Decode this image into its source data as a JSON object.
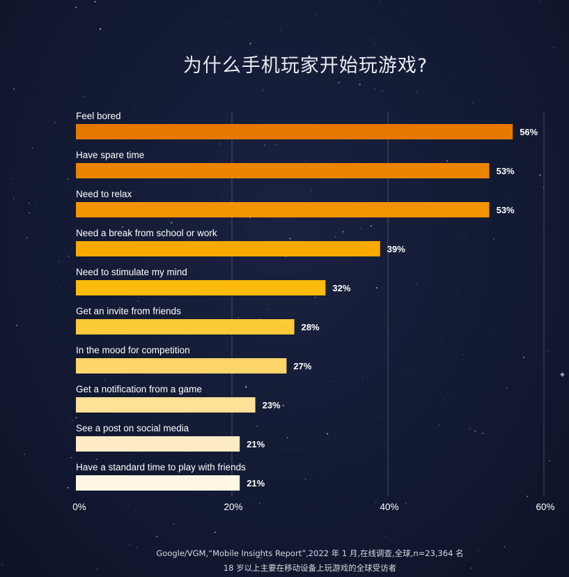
{
  "title": "为什么手机玩家开始玩游戏?",
  "chart_data": {
    "type": "bar",
    "orientation": "horizontal",
    "categories": [
      "Feel bored",
      "Have spare time",
      "Need to relax",
      "Need a break from school or work",
      "Need to stimulate my mind",
      "Get an invite from friends",
      "In the mood for competition",
      "Get a notification from a game",
      "See a post on social media",
      "Have a standard time to play with friends"
    ],
    "values": [
      56,
      53,
      53,
      39,
      32,
      28,
      27,
      23,
      21,
      21
    ],
    "value_labels": [
      "56%",
      "53%",
      "53%",
      "39%",
      "32%",
      "28%",
      "27%",
      "23%",
      "21%",
      "21%"
    ],
    "bar_colors": [
      "#e67800",
      "#ec8400",
      "#f29400",
      "#f9aa00",
      "#fdbb0c",
      "#fecb38",
      "#fed56a",
      "#ffe097",
      "#ffebc6",
      "#fff6e4"
    ],
    "x_ticks": [
      "0%",
      "20%",
      "40%",
      "60%"
    ],
    "xlim": [
      0,
      60
    ],
    "grid": true
  },
  "footer": {
    "line1": "Google/VGM,“Mobile Insights Report”,2022 年 1 月,在线调查,全球,n=23,364 名",
    "line2": "18 岁以上主要在移动设备上玩游戏的全球受访者"
  }
}
